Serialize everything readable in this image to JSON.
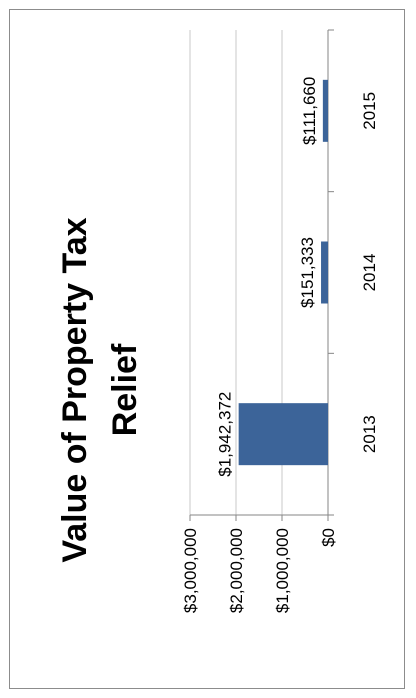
{
  "chart_data": {
    "type": "bar",
    "title_lines": [
      "Value of Property Tax",
      "Relief"
    ],
    "categories": [
      "2013",
      "2014",
      "2015"
    ],
    "values": [
      1942372,
      151333,
      111660
    ],
    "data_labels": [
      "$1,942,372",
      "$151,333",
      "$111,660"
    ],
    "value_ticks": [
      {
        "value": 0,
        "label": "$0"
      },
      {
        "value": 1000000,
        "label": "$1,000,000"
      },
      {
        "value": 2000000,
        "label": "$2,000,000"
      },
      {
        "value": 3000000,
        "label": "$3,000,000"
      }
    ],
    "ylim": [
      0,
      3000000
    ],
    "grid": true,
    "orientation": "rotated 90 degrees counter-clockwise",
    "colors": {
      "bar": "#3c6499",
      "grid": "#c8c8c8",
      "axis": "#868686",
      "border": "#8c8c8c"
    }
  }
}
